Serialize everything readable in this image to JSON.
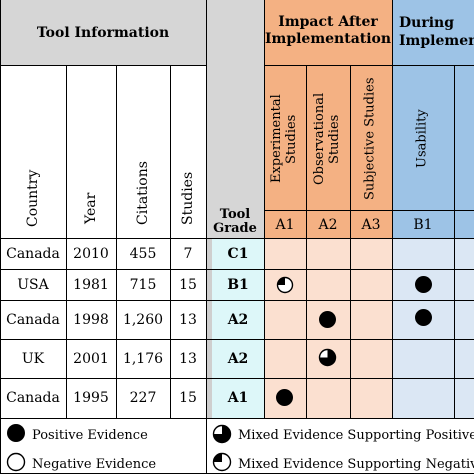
{
  "header": {
    "tool_information": "Tool Information",
    "impact_after": "Impact After Implementation",
    "during": "During Implement",
    "tool_grade": "Tool Grade"
  },
  "columns": {
    "country": "Country",
    "year": "Year",
    "citations": "Citations",
    "studies": "Studies",
    "experimental": "Experimental Studies",
    "observational": "Observational Studies",
    "subjective": "Subjective Studies",
    "usability": "Usability"
  },
  "codes": {
    "a1": "A1",
    "a2": "A2",
    "a3": "A3",
    "b1": "B1"
  },
  "rows": [
    {
      "country": "Canada",
      "year": "2010",
      "citations": "455",
      "studies": "7",
      "grade": "C1",
      "a1": "",
      "a2": "",
      "b1": ""
    },
    {
      "country": "USA",
      "year": "1981",
      "citations": "715",
      "studies": "15",
      "grade": "B1",
      "a1": "mixed",
      "a2": "",
      "b1": "positive"
    },
    {
      "country": "Canada",
      "year": "1998",
      "citations": "1,260",
      "studies": "13",
      "grade": "A2",
      "a1": "",
      "a2": "positive",
      "b1": "positive"
    },
    {
      "country": "UK",
      "year": "2001",
      "citations": "1,176",
      "studies": "13",
      "grade": "A2",
      "a1": "",
      "a2": "mixed-positive",
      "b1": ""
    },
    {
      "country": "Canada",
      "year": "1995",
      "citations": "227",
      "studies": "15",
      "grade": "A1",
      "a1": "positive",
      "a2": "",
      "b1": ""
    }
  ],
  "legend": {
    "positive": "Positive Evidence",
    "negative": "Negative Evidence",
    "mixed_positive": "Mixed Evidence Supporting Positive",
    "mixed_negative": "Mixed Evidence Supporting Negative"
  },
  "colors": {
    "gray": "#d6d6d6",
    "orange": "#f4b183",
    "orange_light": "#fbe0d0",
    "blue": "#9dc3e6",
    "blue_light": "#dbe7f4",
    "cyan_light": "#ddf7f9",
    "divider_gray": "#cfcfcf"
  }
}
